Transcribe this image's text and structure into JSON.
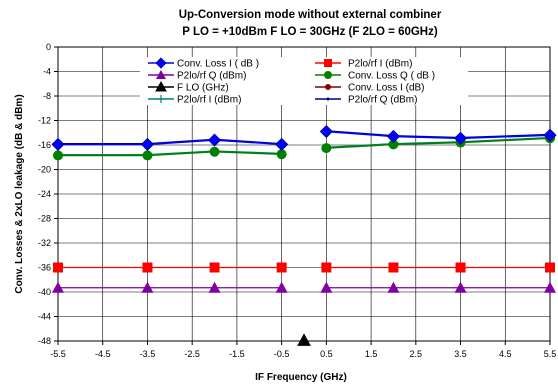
{
  "chart_data": {
    "type": "line",
    "title": "Up-Conversion mode without external combiner",
    "subtitle": "P LO = +10dBm F LO = 30GHz (F 2LO = 60GHz)",
    "xlabel": "IF Frequency (GHz)",
    "ylabel": "Conv. Losses & 2xLO leakage (dB & dBm)",
    "xlim": [
      -5.5,
      5.5
    ],
    "ylim": [
      -48,
      0
    ],
    "x_ticks": [
      "-5.5",
      "-4.5",
      "-3.5",
      "-2.5",
      "-1.5",
      "-0.5",
      "0.5",
      "1.5",
      "2.5",
      "3.5",
      "4.5",
      "5.5"
    ],
    "y_ticks": [
      "0",
      "-4",
      "-8",
      "-12",
      "-16",
      "-20",
      "-24",
      "-28",
      "-32",
      "-36",
      "-40",
      "-44",
      "-48"
    ],
    "grid": true,
    "legend_position": "top",
    "series": [
      {
        "name": "Conv. Loss I ( dB )",
        "color": "#0000FF",
        "marker": "diamond",
        "x": [
          -5.5,
          -3.5,
          -2.0,
          -0.5,
          0.5,
          2.0,
          3.5,
          5.5
        ],
        "y": [
          -15.9,
          -15.9,
          -15.2,
          -15.9,
          -13.8,
          -14.6,
          -14.9,
          -14.4
        ]
      },
      {
        "name": "P2lo/rf I (dBm)",
        "color": "#FF0000",
        "marker": "square",
        "x": [
          -5.5,
          -3.5,
          -2.0,
          -0.5,
          0.5,
          2.0,
          3.5,
          5.5
        ],
        "y": [
          -36,
          -36,
          -36,
          -36,
          -36,
          -36,
          -36,
          -36
        ]
      },
      {
        "name": "P2lo/rf Q (dBm)",
        "color": "#8000A0",
        "marker": "triangle",
        "x": [
          -5.5,
          -3.5,
          -2.0,
          -0.5,
          0.5,
          2.0,
          3.5,
          5.5
        ],
        "y": [
          -39.3,
          -39.3,
          -39.3,
          -39.3,
          -39.3,
          -39.3,
          -39.3,
          -39.3
        ]
      },
      {
        "name": "Conv. Loss Q ( dB )",
        "color": "#008000",
        "marker": "circle",
        "x": [
          -5.5,
          -3.5,
          -2.0,
          -0.5,
          0.5,
          2.0,
          3.5,
          5.5
        ],
        "y": [
          -17.7,
          -17.7,
          -17.1,
          -17.5,
          -16.5,
          -15.9,
          -15.6,
          -14.9
        ]
      },
      {
        "name": "F LO (GHz)",
        "color": "#000000",
        "marker": "triangle-open",
        "x": [
          0
        ],
        "y": [
          -47.9
        ]
      },
      {
        "name": "Conv. Loss I (dB)",
        "color": "#800000",
        "marker": "dot",
        "x": [],
        "y": []
      },
      {
        "name": "P2lo/rf I (dBm)",
        "color": "#008080",
        "marker": "plus",
        "x": [
          -5.5,
          -3.5,
          -2.0,
          -0.5,
          0.5,
          2.0,
          3.5,
          5.5
        ],
        "y": [
          -17.6,
          -17.6,
          -17.0,
          -17.4,
          -16.4,
          -15.8,
          -15.5,
          -14.8
        ]
      },
      {
        "name": "P2lo/rf Q (dBm)",
        "color": "#000080",
        "marker": "star",
        "x": [
          -5.5,
          -3.5,
          -2.0,
          -0.5,
          0.5,
          2.0,
          3.5,
          5.5
        ],
        "y": [
          -15.8,
          -15.8,
          -15.1,
          -15.8,
          -13.7,
          -14.5,
          -14.8,
          -14.3
        ]
      }
    ]
  }
}
